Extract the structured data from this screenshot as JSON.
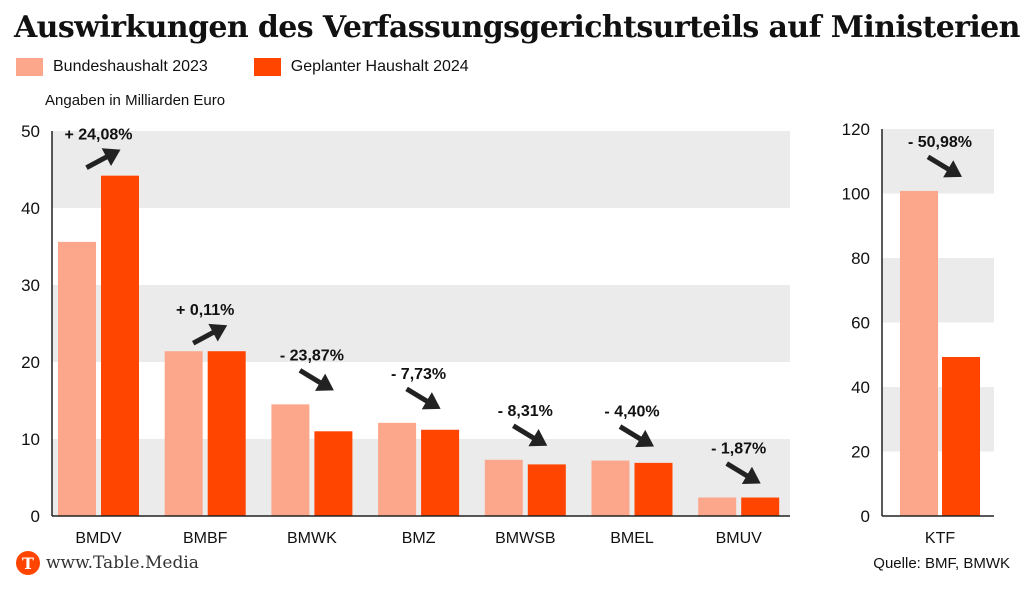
{
  "title": "Auswirkungen des Verfassungsgerichtsurteils auf Ministerien",
  "legend": [
    {
      "label": "Bundeshaushalt 2023",
      "color": "#fca78b"
    },
    {
      "label": "Geplanter Haushalt 2024",
      "color": "#ff4500"
    }
  ],
  "unit_note": "Angaben in Milliarden Euro",
  "footer": {
    "logo_letter": "T",
    "site": "www.Table.Media",
    "source": "Quelle: BMF, BMWK"
  },
  "chart_data": [
    {
      "type": "bar",
      "categories": [
        "BMDV",
        "BMBF",
        "BMWK",
        "BMZ",
        "BMWSB",
        "BMEL",
        "BMUV"
      ],
      "series": [
        {
          "name": "Bundeshaushalt 2023",
          "values": [
            35.6,
            21.4,
            14.5,
            12.1,
            7.3,
            7.2,
            2.4
          ]
        },
        {
          "name": "Geplanter Haushalt 2024",
          "values": [
            44.2,
            21.4,
            11.0,
            11.2,
            6.7,
            6.9,
            2.4
          ]
        }
      ],
      "annotations": [
        "+ 24,08%",
        "+ 0,11%",
        "- 23,87%",
        "- 7,73%",
        "- 8,31%",
        "- 4,40%",
        "- 1,87%"
      ],
      "directions": [
        "up",
        "up",
        "down",
        "down",
        "down",
        "down",
        "down"
      ],
      "yticks": [
        0,
        10,
        20,
        30,
        40,
        50
      ],
      "ylim": [
        0,
        50
      ],
      "ylabel": "Angaben in Milliarden Euro",
      "grid": "alternating bands"
    },
    {
      "type": "bar",
      "categories": [
        "KTF"
      ],
      "series": [
        {
          "name": "Bundeshaushalt 2023",
          "values": [
            100.8
          ]
        },
        {
          "name": "Geplanter Haushalt 2024",
          "values": [
            49.3
          ]
        }
      ],
      "annotations": [
        "- 50,98%"
      ],
      "directions": [
        "down"
      ],
      "yticks": [
        0,
        20,
        40,
        60,
        80,
        100,
        120
      ],
      "ylim": [
        0,
        120
      ],
      "grid": "alternating bands"
    }
  ]
}
